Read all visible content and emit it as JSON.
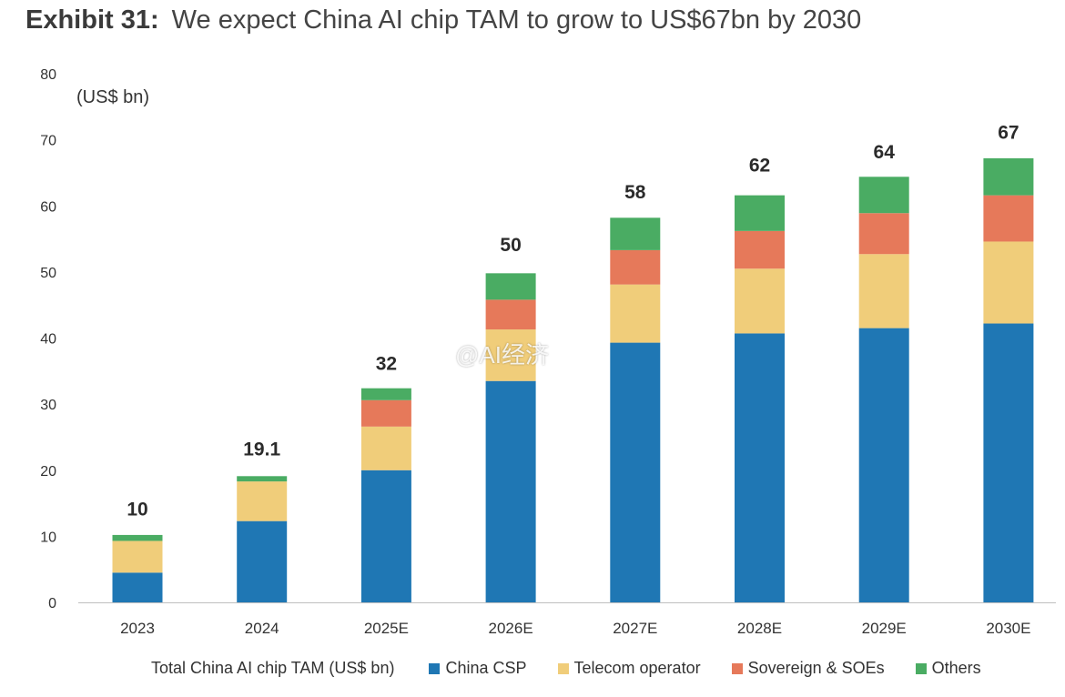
{
  "header": {
    "exhibit": "Exhibit 31:",
    "title": "We expect China AI chip TAM to grow to US$67bn by 2030"
  },
  "watermark": "@AI经济",
  "chart_data": {
    "type": "bar",
    "stacked": true,
    "title": "We expect China AI chip TAM to grow to US$67bn by 2030",
    "ylabel": "(US$ bn)",
    "ylim": [
      0,
      80
    ],
    "yticks": [
      0,
      10,
      20,
      30,
      40,
      50,
      60,
      70,
      80
    ],
    "categories": [
      "2023",
      "2024",
      "2025E",
      "2026E",
      "2027E",
      "2028E",
      "2029E",
      "2030E"
    ],
    "totals": [
      "10",
      "19.1",
      "32",
      "50",
      "58",
      "62",
      "64",
      "67"
    ],
    "series": [
      {
        "name": "China CSP",
        "color": "#1f77b4",
        "values": [
          4.5,
          12.3,
          20.0,
          33.5,
          39.3,
          40.7,
          41.5,
          42.2
        ]
      },
      {
        "name": "Telecom operator",
        "color": "#f0cd7a",
        "values": [
          4.8,
          6.0,
          6.6,
          7.8,
          8.8,
          9.8,
          11.2,
          12.4
        ]
      },
      {
        "name": "Sovereign & SOEs",
        "color": "#e6795a",
        "values": [
          0,
          0,
          4.0,
          4.5,
          5.2,
          5.7,
          6.2,
          7.0
        ]
      },
      {
        "name": "Others",
        "color": "#4aac63",
        "values": [
          0.9,
          0.8,
          1.8,
          4.0,
          4.9,
          5.4,
          5.5,
          5.6
        ]
      }
    ],
    "legend_title": "Total China AI chip TAM (US$ bn)",
    "legend_position": "bottom"
  }
}
